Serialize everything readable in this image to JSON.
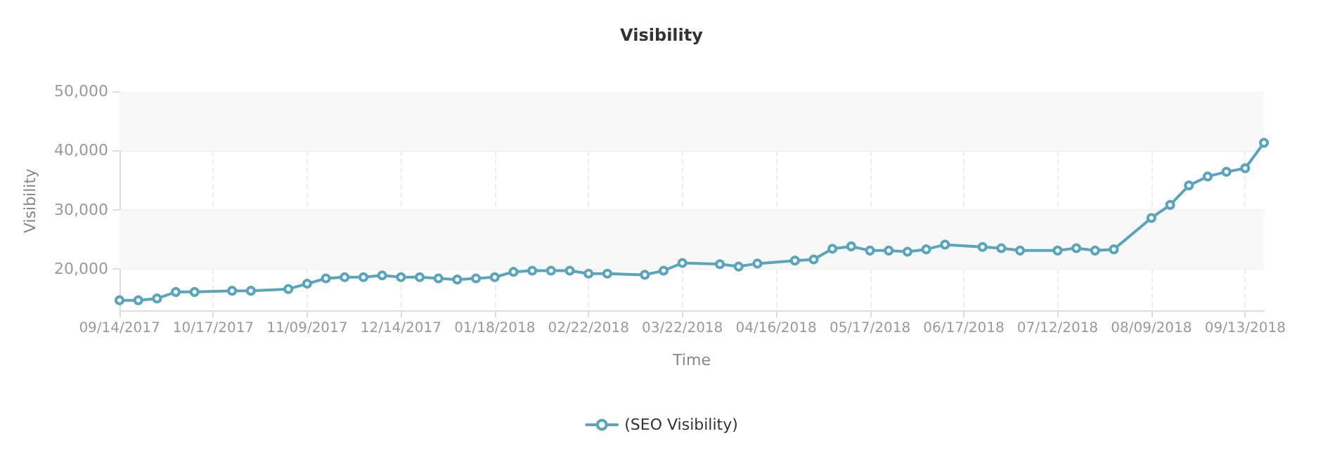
{
  "chart_data": {
    "type": "line",
    "title": "Visibility",
    "xlabel": "Time",
    "ylabel": "Visibility",
    "categories": [
      "09/14/2017",
      null,
      null,
      null,
      null,
      "10/17/2017",
      null,
      null,
      null,
      null,
      "11/09/2017",
      null,
      null,
      null,
      null,
      "12/14/2017",
      null,
      null,
      null,
      null,
      "01/18/2018",
      null,
      null,
      null,
      null,
      "02/22/2018",
      null,
      null,
      null,
      null,
      "03/22/2018",
      null,
      null,
      null,
      null,
      "04/16/2018",
      null,
      null,
      null,
      null,
      "05/17/2018",
      null,
      null,
      null,
      null,
      "06/17/2018",
      null,
      null,
      null,
      null,
      "07/12/2018",
      null,
      null,
      null,
      null,
      "08/09/2018",
      null,
      null,
      null,
      null,
      "09/13/2018",
      null
    ],
    "series": [
      {
        "name": "(SEO Visibility)",
        "color": "#5aa5bb",
        "values": [
          14700,
          14700,
          15000,
          16100,
          16100,
          null,
          16300,
          16300,
          null,
          16600,
          17500,
          18400,
          18600,
          18600,
          18900,
          18600,
          18600,
          18400,
          18200,
          18400,
          18600,
          19500,
          19700,
          19700,
          19700,
          19200,
          19200,
          null,
          19000,
          19700,
          21000,
          null,
          20800,
          20400,
          20900,
          null,
          21400,
          21600,
          23400,
          23800,
          23100,
          23100,
          22900,
          23300,
          24100,
          null,
          23700,
          23500,
          23100,
          null,
          23100,
          23500,
          23100,
          23300,
          null,
          28600,
          30800,
          34100,
          35600,
          36400,
          37000,
          41300
        ]
      }
    ],
    "ylim": [
      13000,
      50000
    ],
    "yticks": [
      {
        "value": 20000,
        "label": "20,000"
      },
      {
        "value": 30000,
        "label": "30,000"
      },
      {
        "value": 40000,
        "label": "40,000"
      },
      {
        "value": 50000,
        "label": "50,000"
      }
    ],
    "bands": [
      {
        "axis": "y",
        "from": 20000,
        "to": 30000,
        "color": "#f8f8f8"
      },
      {
        "axis": "y",
        "from": 40000,
        "to": 50000,
        "color": "#f8f8f8"
      }
    ],
    "grid": true,
    "legend": "bottom",
    "marker": "circle",
    "line_style": "solid"
  }
}
